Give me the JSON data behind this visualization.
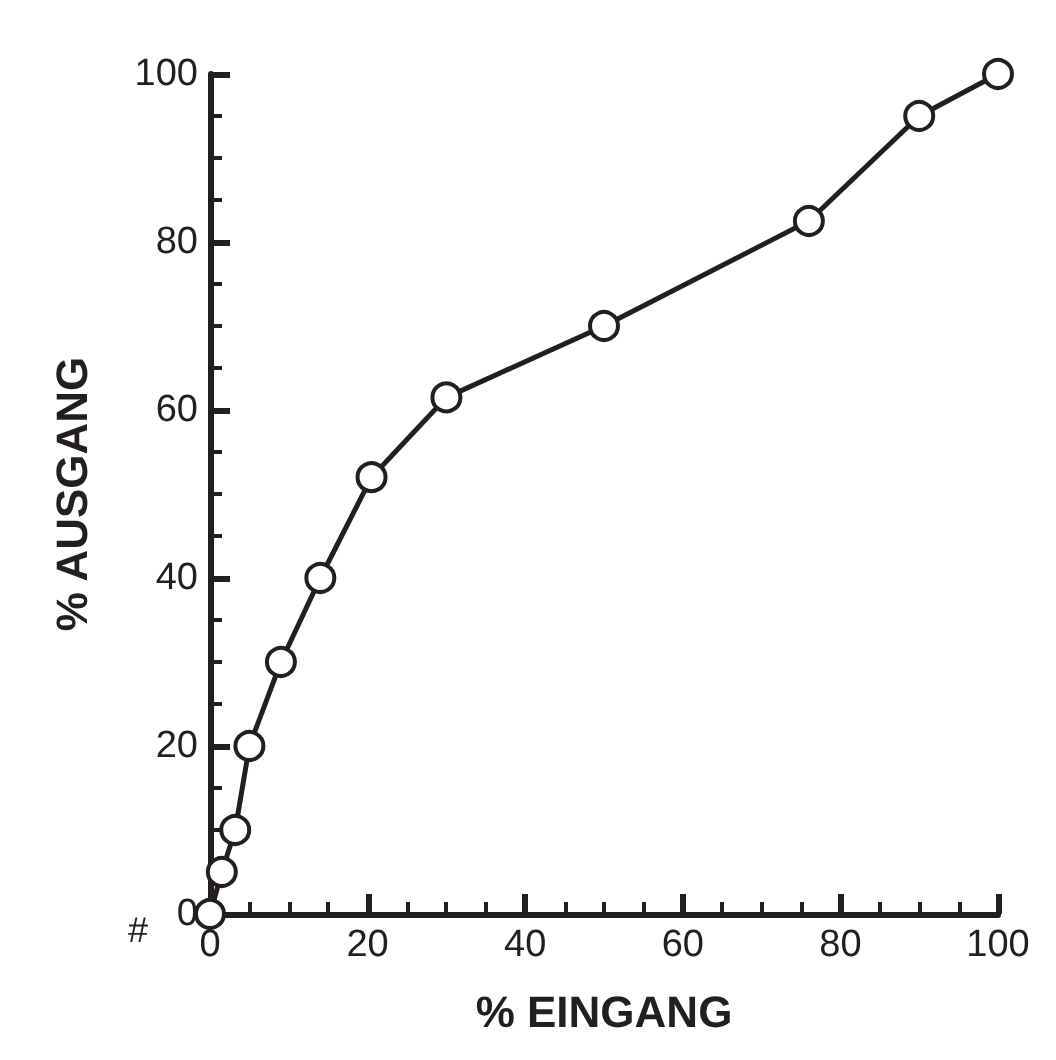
{
  "chart_data": {
    "type": "line",
    "xlabel": "% EINGANG",
    "ylabel": "% AUSGANG",
    "x": [
      0,
      1.5,
      3.2,
      5,
      9,
      14,
      20.5,
      30,
      50,
      76,
      90,
      100
    ],
    "values": [
      0,
      5,
      10,
      20,
      30,
      40,
      52,
      61.5,
      70,
      82.5,
      95,
      100
    ],
    "color": "#231f20",
    "marker": "circle",
    "line_style": "solid",
    "xlim": [
      0,
      100
    ],
    "xticks": [
      0,
      20,
      40,
      60,
      80,
      100
    ],
    "ylim": [
      0,
      100
    ],
    "yticks": [
      0,
      20,
      40,
      60,
      80,
      100
    ],
    "grid": false,
    "annotations": [
      "#"
    ]
  }
}
